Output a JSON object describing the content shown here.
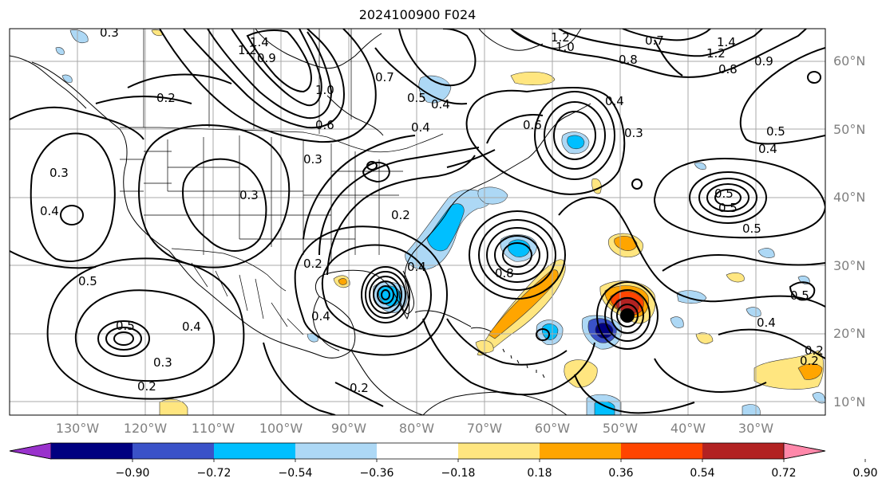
{
  "title": "2024100900 F024",
  "latitudes": [
    {
      "label": "60°N",
      "value": 60
    },
    {
      "label": "50°N",
      "value": 50
    },
    {
      "label": "40°N",
      "value": 40
    },
    {
      "label": "30°N",
      "value": 30
    },
    {
      "label": "20°N",
      "value": 20
    },
    {
      "label": "10°N",
      "value": 10
    }
  ],
  "longitudes": [
    {
      "label": "130°W",
      "value": -130
    },
    {
      "label": "120°W",
      "value": -120
    },
    {
      "label": "110°W",
      "value": -110
    },
    {
      "label": "100°W",
      "value": -100
    },
    {
      "label": "90°W",
      "value": -90
    },
    {
      "label": "80°W",
      "value": -80
    },
    {
      "label": "70°W",
      "value": -70
    },
    {
      "label": "60°W",
      "value": -60
    },
    {
      "label": "50°W",
      "value": -50
    },
    {
      "label": "40°W",
      "value": -40
    },
    {
      "label": "30°W",
      "value": -30
    }
  ],
  "colorbar": {
    "levels": [
      "−0.90",
      "−0.72",
      "−0.54",
      "−0.36",
      "−0.18",
      "0.18",
      "0.36",
      "0.54",
      "0.72",
      "0.90"
    ],
    "colors": [
      "#9932cc",
      "#000080",
      "#3a52c8",
      "#00bfff",
      "#add8f5",
      "#ffffff",
      "#ffe680",
      "#ffa500",
      "#ff4500",
      "#b22222",
      "#ff88aa"
    ]
  },
  "contour_labels": [
    "1.4",
    "1.2",
    "0.9",
    "0.3",
    "0.2",
    "0.5",
    "0.4",
    "0.3",
    "0.4",
    "0.5",
    "0.2",
    "0.3",
    "0.2",
    "1.0",
    "0.6",
    "0.3",
    "0.4",
    "0.7",
    "1.2",
    "1.0",
    "0.8",
    "0.7",
    "1.4",
    "1.2",
    "0.8",
    "0.9",
    "0.4",
    "0.3",
    "0.5",
    "0.4",
    "0.4",
    "0.6",
    "0.5",
    "0.8",
    "0.4",
    "0.5",
    "0.4",
    "0.2",
    "0.2",
    "0.5",
    "0.2",
    "0.4",
    "0.3",
    "0.5",
    "0.5",
    "0.2"
  ]
}
